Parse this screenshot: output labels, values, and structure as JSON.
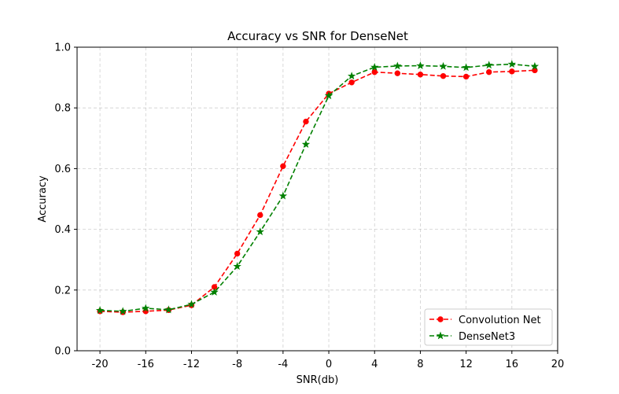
{
  "chart_data": {
    "type": "line",
    "title": "Accuracy vs SNR for DenseNet",
    "xlabel": "SNR(db)",
    "ylabel": "Accuracy",
    "xlim": [
      -22,
      20
    ],
    "ylim": [
      0.0,
      1.0
    ],
    "xticks": [
      "-20",
      "-16",
      "-12",
      "-8",
      "-4",
      "0",
      "4",
      "8",
      "12",
      "16",
      "20"
    ],
    "xtick_values": [
      -20,
      -16,
      -12,
      -8,
      -4,
      0,
      4,
      8,
      12,
      16,
      20
    ],
    "yticks": [
      "0.0",
      "0.2",
      "0.4",
      "0.6",
      "0.8",
      "1.0"
    ],
    "ytick_values": [
      0.0,
      0.2,
      0.4,
      0.6,
      0.8,
      1.0
    ],
    "grid": true,
    "legend_position": "lower-right",
    "x": [
      -20,
      -18,
      -16,
      -14,
      -12,
      -10,
      -8,
      -6,
      -4,
      -2,
      0,
      2,
      4,
      6,
      8,
      10,
      12,
      14,
      16,
      18
    ],
    "series": [
      {
        "name": "Convolution Net",
        "color": "#ff0000",
        "marker": "circle",
        "linestyle": "dashed",
        "values": [
          0.13,
          0.127,
          0.13,
          0.134,
          0.15,
          0.21,
          0.32,
          0.447,
          0.608,
          0.755,
          0.847,
          0.884,
          0.918,
          0.914,
          0.91,
          0.905,
          0.903,
          0.918,
          0.92,
          0.924
        ]
      },
      {
        "name": "DenseNet3",
        "color": "#008000",
        "marker": "star",
        "linestyle": "dashed",
        "values": [
          0.133,
          0.13,
          0.14,
          0.135,
          0.153,
          0.193,
          0.278,
          0.392,
          0.51,
          0.68,
          0.84,
          0.905,
          0.934,
          0.938,
          0.939,
          0.937,
          0.933,
          0.941,
          0.944,
          0.937
        ]
      }
    ]
  }
}
